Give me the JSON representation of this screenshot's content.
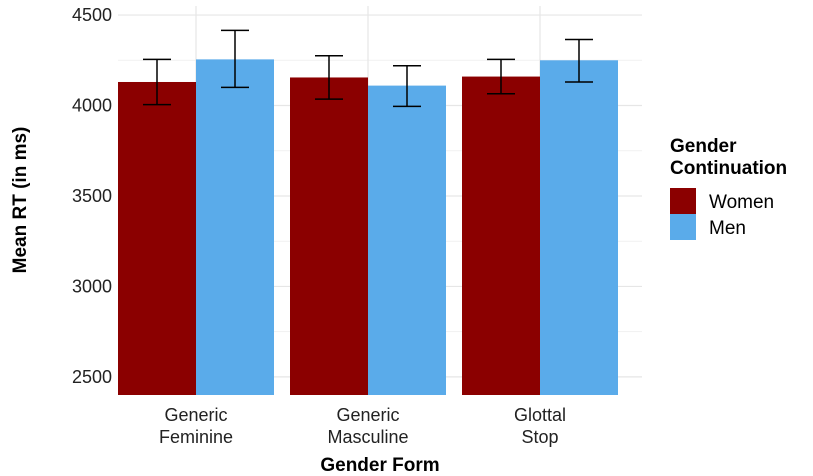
{
  "chart_data": {
    "type": "bar",
    "title": "",
    "xlabel": "Gender Form",
    "ylabel": "Mean RT (in ms)",
    "categories": [
      [
        "Generic",
        "Feminine"
      ],
      [
        "Generic",
        "Masculine"
      ],
      [
        "Glottal",
        "Stop"
      ]
    ],
    "series": [
      {
        "name": "Women",
        "color": "#8b0000",
        "values": [
          4130,
          4155,
          4160
        ],
        "error_low": [
          4005,
          4035,
          4065
        ],
        "error_high": [
          4255,
          4275,
          4255
        ]
      },
      {
        "name": "Men",
        "color": "#5aabea",
        "values": [
          4255,
          4110,
          4250
        ],
        "error_low": [
          4100,
          3995,
          4130
        ],
        "error_high": [
          4415,
          4220,
          4365
        ]
      }
    ],
    "ylim": [
      2400,
      4550
    ],
    "yticks": [
      2500,
      3000,
      3500,
      4000,
      4500
    ],
    "ytick_labels": [
      "2500",
      "3000",
      "3500",
      "4000",
      "4500"
    ],
    "grid": true,
    "legend": {
      "title": [
        "Gender",
        "Continuation"
      ],
      "placement": "right"
    }
  }
}
